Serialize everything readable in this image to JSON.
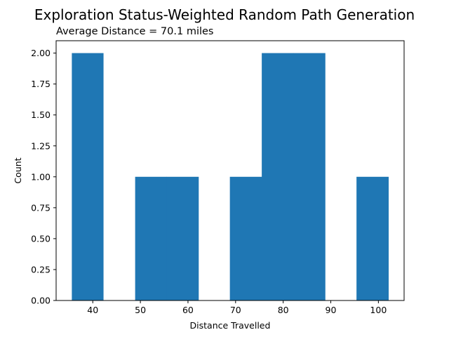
{
  "chart_data": {
    "type": "bar",
    "title": "Exploration Status-Weighted Random Path Generation",
    "subtitle": "Average Distance = 70.1 miles",
    "xlabel": "Distance Travelled",
    "ylabel": "Count",
    "xlim": [
      32.3,
      105.4
    ],
    "ylim": [
      0,
      2.1
    ],
    "xticks": [
      40,
      50,
      60,
      70,
      80,
      90,
      100
    ],
    "xtick_labels": [
      "40",
      "50",
      "60",
      "70",
      "80",
      "90",
      "100"
    ],
    "yticks": [
      0,
      0.25,
      0.5,
      0.75,
      1.0,
      1.25,
      1.5,
      1.75,
      2.0
    ],
    "ytick_labels": [
      "0.00",
      "0.25",
      "0.50",
      "0.75",
      "1.00",
      "1.25",
      "1.50",
      "1.75",
      "2.00"
    ],
    "bin_edges": [
      35.6,
      42.2,
      48.9,
      55.5,
      62.2,
      68.8,
      75.5,
      82.1,
      88.8,
      95.4,
      102.1
    ],
    "values": [
      2,
      0,
      1,
      1,
      0,
      1,
      2,
      2,
      0,
      1
    ],
    "bar_color": "#1f77b4",
    "grid": false
  }
}
